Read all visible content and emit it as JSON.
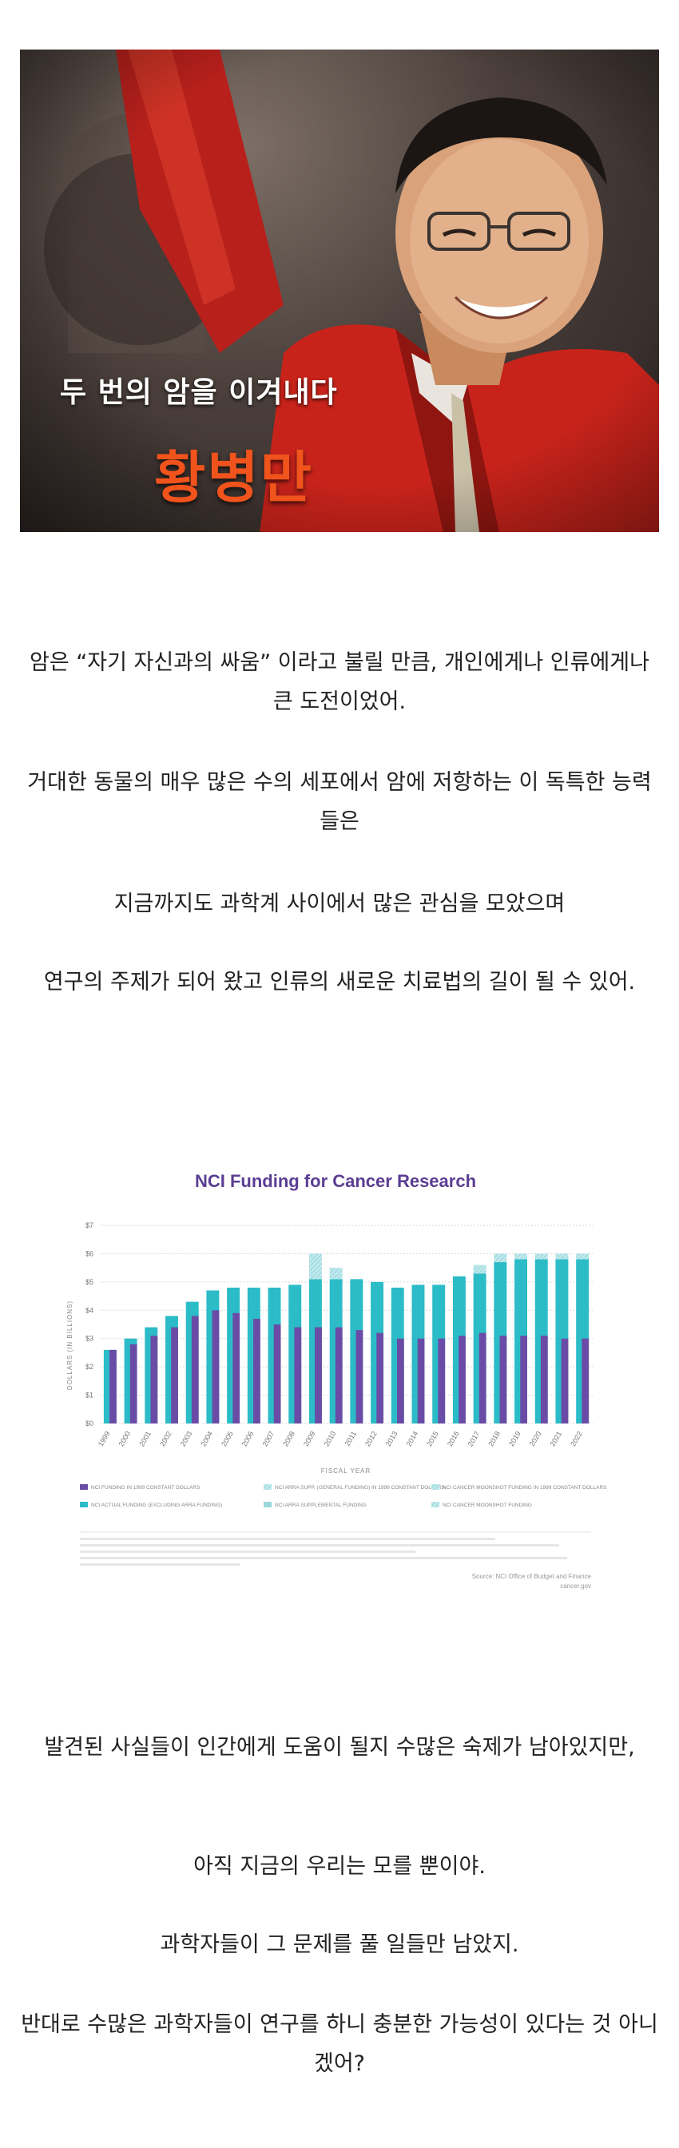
{
  "hero": {
    "caption_line1": "두 번의 암을 이겨내다",
    "caption_line2": "황병만"
  },
  "paragraphs": [
    "암은 “자기 자신과의 싸움” 이라고 불릴 만큼, 개인에게나 인류에게나 큰 도전이었어.",
    "거대한 동물의 매우 많은 수의 세포에서 암에 저항하는 이 독특한 능력들은",
    "지금까지도 과학계 사이에서 많은 관심을 모았으며",
    "연구의 주제가 되어 왔고 인류의 새로운 치료법의 길이 될 수 있어.",
    "발견된 사실들이 인간에게 도움이 될지 수많은 숙제가 남아있지만,",
    "아직 지금의 우리는 모를 뿐이야.",
    "과학자들이 그 문제를 풀 일들만 남았지.",
    "반대로 수많은 과학자들이 연구를 하니  충분한 가능성이 있다는 것 아니겠어?"
  ],
  "chart_data": {
    "type": "bar",
    "title": "NCI Funding for Cancer Research",
    "xlabel": "FISCAL YEAR",
    "ylabel": "DOLLARS (IN BILLIONS)",
    "ylim": [
      0,
      7
    ],
    "yticks": [
      "$0",
      "$1",
      "$2",
      "$3",
      "$4",
      "$5",
      "$6",
      "$7"
    ],
    "categories": [
      "1999",
      "2000",
      "2001",
      "2002",
      "2003",
      "2004",
      "2005",
      "2006",
      "2007",
      "2008",
      "2009",
      "2010",
      "2011",
      "2012",
      "2013",
      "2014",
      "2015",
      "2016",
      "2017",
      "2018",
      "2019",
      "2020",
      "2021",
      "2022"
    ],
    "series": [
      {
        "name": "NCI FUNDING IN 1999 CONSTANT DOLLARS",
        "color": "#6a4ca6",
        "values": [
          2.6,
          2.8,
          3.1,
          3.4,
          3.8,
          4.0,
          3.9,
          3.7,
          3.5,
          3.4,
          3.4,
          3.4,
          3.3,
          3.2,
          3.0,
          3.0,
          3.0,
          3.1,
          3.2,
          3.1,
          3.1,
          3.1,
          3.0,
          3.0
        ]
      },
      {
        "name": "NCI ACTUAL FUNDING",
        "color": "#2bbcc7",
        "values": [
          2.6,
          3.0,
          3.4,
          3.8,
          4.3,
          4.7,
          4.8,
          4.8,
          4.8,
          4.9,
          5.1,
          5.1,
          5.1,
          5.0,
          4.8,
          4.9,
          4.9,
          5.2,
          5.3,
          5.7,
          5.8,
          5.8,
          5.8,
          5.8
        ]
      },
      {
        "name": "NCI ARRA SUPPLEMENTAL FUNDING",
        "color": "#9ad8dc",
        "values": [
          0,
          0,
          0,
          0,
          0,
          0,
          0,
          0,
          0,
          0,
          0.9,
          0.4,
          0,
          0,
          0,
          0,
          0,
          0,
          0,
          0,
          0,
          0,
          0,
          0
        ]
      },
      {
        "name": "NCI CANCER MOONSHOT FUNDING",
        "color": "#a9e4e8",
        "values": [
          0,
          0,
          0,
          0,
          0,
          0,
          0,
          0,
          0,
          0,
          0,
          0,
          0,
          0,
          0,
          0,
          0,
          0,
          0.3,
          0.3,
          0.2,
          0.2,
          0.2,
          0.2
        ]
      }
    ],
    "legend": [
      "NCI FUNDING IN 1999 CONSTANT DOLLARS",
      "NCI ARRA SUPP. (GENERAL FUNDING) IN 1999 CONSTANT DOLLARS",
      "NCI CANCER MOONSHOT FUNDING IN 1999 CONSTANT DOLLARS",
      "NCI ACTUAL FUNDING (EXCLUDING ARRA FUNDING)",
      "NCI ARRA SUPPLEMENTAL FUNDING",
      "NCI CANCER MOONSHOT FUNDING"
    ],
    "source": [
      "Source: NCI Office of Budget and Finance",
      "cancer.gov"
    ]
  }
}
